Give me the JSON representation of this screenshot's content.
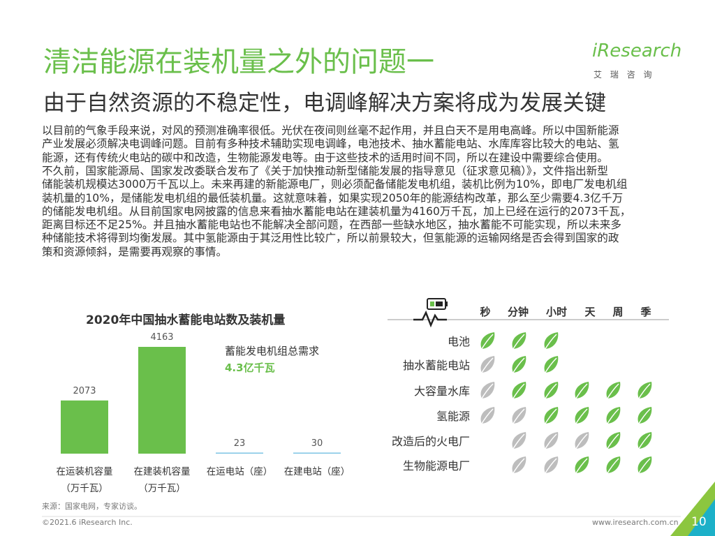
{
  "header": {
    "title": "清洁能源在装机量之外的问题一",
    "subtitle": "由于自然资源的不稳定性，电调峰解决方案将成为发展关键"
  },
  "logo": {
    "name": "iResearch",
    "tagline": "艾 瑞 咨 询"
  },
  "body": {
    "lines": [
      "以目前的气象手段来说，对风的预测准确率很低。光伏在夜间则丝毫不起作用，并且白天不是用电高峰。所以中国新能源",
      "产业发展必须解决电调峰问题。目前有多种技术辅助实现电调峰，电池技术、抽水蓄能电站、水库库容比较大的电站、氢",
      "能源，还有传统火电站的碳中和改造，生物能源发电等。由于这些技术的适用时间不同，所以在建设中需要综合使用。",
      "不久前，国家能源局、国家发改委联合发布了《关于加快推动新型储能发展的指导意见（征求意见稿）》，文件指出新型",
      "储能装机规模达3000万千瓦以上。未来再建的新能源电厂，则必须配备储能发电机组，装机比例为10%，即电厂发电机组",
      "装机量的10%，是储能发电机组的最低装机量。这就意味着，如果实现2050年的能源结构改革，那么至少需要4.3亿千万",
      "的储能发电机组。从目前国家电网披露的信息来看抽水蓄能电站在建装机量为4160万千瓦，加上已经在运行的2073千瓦，",
      "距离目标还不足25%。并且抽水蓄能电站也不能解决全部问题，在西部一些缺水地区，抽水蓄能不可能实现，所以未来多",
      "种储能技术将得到均衡发展。其中氢能源由于其泛用性比较广，所以前景较大，但氢能源的运输网络是否会得到国家的政",
      "策和资源倾斜，是需要再观察的事情。"
    ]
  },
  "chart_data": {
    "type": "bar",
    "title": "2020年中国抽水蓄能电站数及装机量",
    "categories": [
      "在运装机容量\n（万千瓦）",
      "在建装机容量\n（万千瓦）",
      "在运电站（座）",
      "在建电站（座）"
    ],
    "values": [
      2073,
      4163,
      23,
      30
    ],
    "colors": [
      "#6abf4b",
      "#6abf4b",
      "#7cc4e4",
      "#7cc4e4"
    ],
    "annotations": [
      "蓄能发电机组总需求",
      "4.3亿千瓦"
    ]
  },
  "matrix": {
    "columns": [
      "秒",
      "分钟",
      "小时",
      "天",
      "周",
      "季"
    ],
    "colors": {
      "green": "#6abf4b",
      "gray": "#bdbdbd"
    },
    "rows": [
      {
        "label": "电池",
        "cells": [
          "green",
          "green",
          "green",
          null,
          null,
          null
        ]
      },
      {
        "label": "抽水蓄能电站",
        "cells": [
          "gray",
          "green",
          "green",
          null,
          null,
          null
        ]
      },
      {
        "label": "大容量水库",
        "cells": [
          "gray",
          "green",
          "green",
          "green",
          "green",
          "green"
        ]
      },
      {
        "label": "氢能源",
        "cells": [
          "gray",
          "gray",
          "green",
          "green",
          "green",
          "green"
        ]
      },
      {
        "label": "改造后的火电厂",
        "cells": [
          null,
          "gray",
          "gray",
          "gray",
          "green",
          "green"
        ]
      },
      {
        "label": "生物能源电厂",
        "cells": [
          null,
          "gray",
          "gray",
          "green",
          "green",
          "green"
        ]
      }
    ]
  },
  "footer": {
    "source": "来源：国家电网，专家访谈。",
    "copyright": "©2021.6 iResearch Inc.",
    "url": "www.iresearch.com.cn",
    "page": "10"
  }
}
